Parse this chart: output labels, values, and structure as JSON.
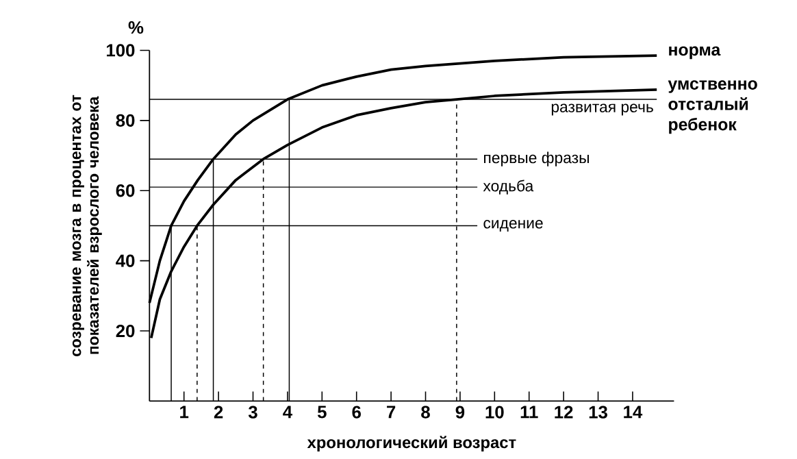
{
  "chart_data": {
    "type": "line",
    "xlabel": "хронологический возраст",
    "ylabel": "созревание мозга в процентах от показателей взрослого человека",
    "xlim": [
      0,
      15.2
    ],
    "ylim": [
      0,
      100
    ],
    "xticks": [
      1,
      2,
      3,
      4,
      5,
      6,
      7,
      8,
      9,
      10,
      11,
      12,
      13,
      14
    ],
    "yticks": [
      20,
      40,
      60,
      80,
      100
    ],
    "series": [
      {
        "name": "норма",
        "color": "#000000",
        "x": [
          0,
          0.3,
          0.63,
          1,
          1.4,
          1.85,
          2.5,
          3,
          4,
          5,
          6,
          7,
          8,
          10,
          12,
          14.7
        ],
        "values": [
          28,
          40,
          50,
          57,
          63,
          69,
          76,
          80,
          86,
          90,
          92.5,
          94.5,
          95.5,
          97,
          98,
          98.5
        ]
      },
      {
        "name": "умственно отсталый ребенок",
        "color": "#000000",
        "x": [
          0.05,
          0.3,
          0.63,
          1,
          1.38,
          1.85,
          2.5,
          3.3,
          4,
          5,
          6,
          7,
          8,
          8.9,
          10,
          12,
          14.7
        ],
        "values": [
          18,
          29,
          37,
          44,
          50,
          56,
          63,
          69,
          73,
          78,
          81.5,
          83.5,
          85.2,
          86,
          87,
          88,
          88.8
        ]
      },
      {
        "name": "развитая речь",
        "color": "#000000",
        "x": [
          0,
          14.7
        ],
        "values": [
          86,
          86
        ]
      },
      {
        "name": "первые фразы",
        "color": "#000000",
        "x": [
          0,
          9.5
        ],
        "values": [
          69,
          69
        ]
      },
      {
        "name": "ходьба",
        "color": "#000000",
        "x": [
          0,
          9.5
        ],
        "values": [
          61,
          61
        ]
      },
      {
        "name": "сидение",
        "color": "#000000",
        "x": [
          0,
          9.5
        ],
        "values": [
          50,
          50
        ]
      },
      {
        "color": "#000000",
        "x": [
          0.63,
          0.63
        ],
        "values": [
          0,
          50
        ]
      },
      {
        "color": "#000000",
        "x": [
          1.85,
          1.85
        ],
        "values": [
          0,
          69
        ]
      },
      {
        "color": "#000000",
        "x": [
          4.05,
          4.05
        ],
        "values": [
          0,
          86
        ]
      },
      {
        "color": "#000000",
        "line_style": "dashed",
        "x": [
          1.38,
          1.38
        ],
        "values": [
          0,
          50
        ]
      },
      {
        "color": "#000000",
        "line_style": "dashed",
        "x": [
          3.3,
          3.3
        ],
        "values": [
          0,
          69
        ]
      },
      {
        "color": "#000000",
        "line_style": "dashed",
        "x": [
          8.9,
          8.9
        ],
        "values": [
          0,
          86
        ]
      }
    ],
    "annotations": [
      "%"
    ]
  }
}
